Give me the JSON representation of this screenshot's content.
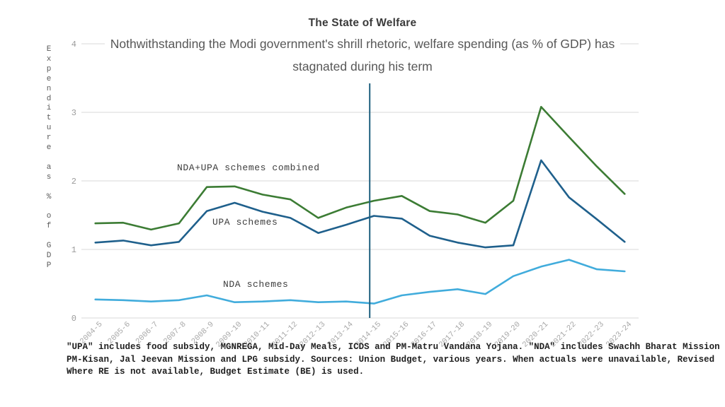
{
  "title": "The State of Welfare",
  "subtitle_line1": "Nothwithstanding the Modi government's shrill rhetoric, welfare spending (as % of GDP) has",
  "subtitle_line2": "stagnated during his term",
  "footnote_lines": [
    "\"UPA\" includes food subsidy, MGNREGA, Mid-Day Meals, ICDS and PM-Matru Vandana Yojana. \"NDA\" includes Swachh Bharat Mission",
    "PM-Kisan, Jal Jeevan Mission and LPG subsidy. Sources: Union Budget, various years. When actuals were unavailable, Revised",
    "Where RE is not available, Budget Estimate (BE) is used."
  ],
  "colors": {
    "grid": "#d9d9d9",
    "x_tick_text": "#a8a8a8",
    "y_tick_text": "#9b9b9b",
    "title_text": "#3b3b3b",
    "subtitle_text": "#575757",
    "footnote_text": "#1f1f1f",
    "combined_line": "#3c7c34",
    "upa_line": "#1f608c",
    "nda_line": "#41acdc",
    "vline": "#1e5f7e"
  },
  "chart_data": {
    "type": "line",
    "title": "The State of Welfare",
    "subtitle": "Nothwithstanding the Modi government's shrill rhetoric, welfare spending (as % of GDP) has stagnated during his term",
    "xlabel": "",
    "ylabel": "Expenditure as % of GDP",
    "ylim": [
      0,
      4
    ],
    "yticks": [
      0,
      1,
      2,
      3,
      4
    ],
    "grid": "horizontal",
    "legend_position": "inline-labels",
    "categories": [
      "2004-5",
      "2005-6",
      "2006-7",
      "2007-8",
      "2008-9",
      "2009-10",
      "2010-11",
      "2011-12",
      "2012-13",
      "2013-14",
      "2014-15",
      "2015-16",
      "2016-17",
      "2017-18",
      "2018-19",
      "2019-20",
      "2020-21",
      "2021-22",
      "2022-23",
      "2023-24"
    ],
    "series": [
      {
        "name": "NDA+UPA schemes combined",
        "color": "#3c7c34",
        "values": [
          1.38,
          1.39,
          1.29,
          1.38,
          1.91,
          1.92,
          1.8,
          1.73,
          1.46,
          1.61,
          1.71,
          1.78,
          1.56,
          1.51,
          1.39,
          1.71,
          3.08,
          2.64,
          2.21,
          1.81
        ]
      },
      {
        "name": "UPA schemes",
        "color": "#1f608c",
        "values": [
          1.1,
          1.13,
          1.06,
          1.11,
          1.56,
          1.68,
          1.55,
          1.46,
          1.24,
          1.36,
          1.49,
          1.45,
          1.2,
          1.1,
          1.03,
          1.06,
          2.3,
          1.76,
          1.44,
          1.11
        ]
      },
      {
        "name": "NDA schemes",
        "color": "#41acdc",
        "values": [
          0.27,
          0.26,
          0.24,
          0.26,
          0.33,
          0.23,
          0.24,
          0.26,
          0.23,
          0.24,
          0.21,
          0.33,
          0.38,
          0.42,
          0.35,
          0.61,
          0.75,
          0.85,
          0.71,
          0.68
        ]
      }
    ],
    "vline": {
      "category": "2014-15",
      "color": "#1e5f7e"
    }
  },
  "series_labels": {
    "combined": "NDA+UPA schemes combined",
    "upa": "UPA schemes",
    "nda": "NDA schemes"
  }
}
